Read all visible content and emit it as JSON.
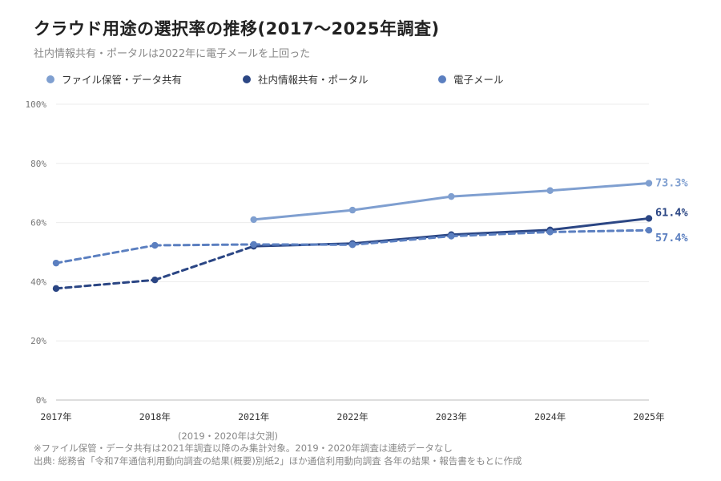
{
  "header": {
    "title": "クラウド用途の選択率の推移(2017〜2025年調査)",
    "subtitle": "社内情報共有・ポータルは2022年に電子メールを上回った"
  },
  "notes": {
    "gap": "(2019・2020年は欠測)",
    "footnote": "※ファイル保管・データ共有は2021年調査以降のみ集計対象。2019・2020年調査は連続データなし",
    "source": "出典: 総務省「令和7年通信利用動向調査の結果(概要)別紙2」ほか通信利用動向調査 各年の結果・報告書をもとに作成"
  },
  "chart_data": {
    "type": "line",
    "title": "クラウド用途の選択率の推移(2017〜2025年調査)",
    "subtitle": "社内情報共有・ポータルは2022年に電子メールを上回った",
    "categories": [
      "2017年",
      "2018年",
      "2021年",
      "2022年",
      "2023年",
      "2024年",
      "2025年"
    ],
    "ylim": [
      0,
      100
    ],
    "yticks": [
      0,
      20,
      40,
      60,
      80,
      100
    ],
    "ytick_labels": [
      "0%",
      "20%",
      "40%",
      "60%",
      "80%",
      "100%"
    ],
    "grid": true,
    "legend_position": "top-left",
    "series": [
      {
        "name": "ファイル保管・データ共有",
        "color": "#7f9fd0",
        "values": [
          null,
          null,
          61.0,
          64.2,
          68.8,
          70.8,
          73.3
        ],
        "end_label": "73.3%"
      },
      {
        "name": "社内情報共有・ポータル",
        "color": "#2b4684",
        "values": [
          37.7,
          40.6,
          52.0,
          52.9,
          55.9,
          57.5,
          61.4
        ],
        "end_label": "61.4%"
      },
      {
        "name": "電子メール",
        "color": "#5b7fc0",
        "values": [
          46.3,
          52.3,
          52.6,
          52.5,
          55.4,
          56.8,
          57.4
        ],
        "end_label": "57.4%"
      }
    ]
  }
}
